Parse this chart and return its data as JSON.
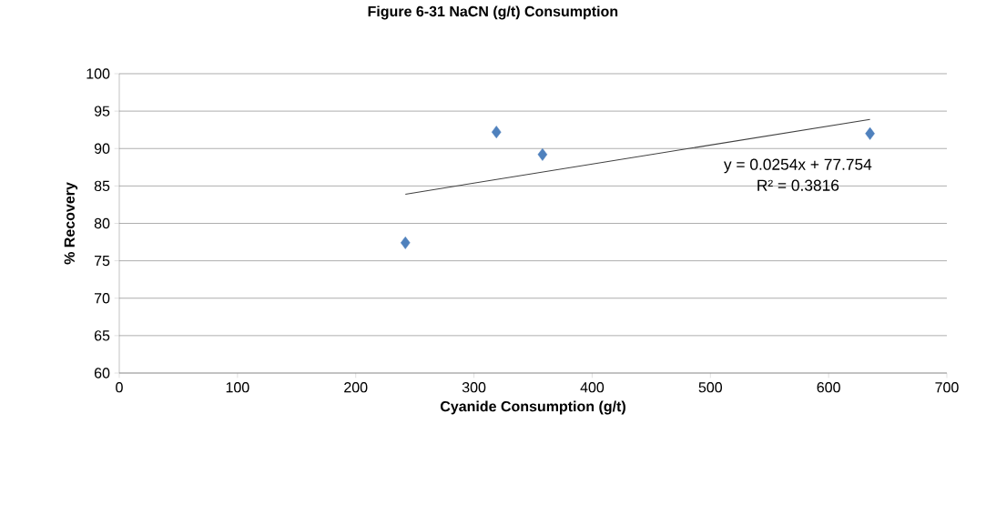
{
  "chart_data": {
    "type": "scatter",
    "title": "Figure 6-31 NaCN (g/t) Consumption",
    "xlabel": "Cyanide Consumption (g/t)",
    "ylabel": "% Recovery",
    "xlim": [
      0,
      700
    ],
    "xticks": [
      0,
      100,
      200,
      300,
      400,
      500,
      600,
      700
    ],
    "ylim": [
      60,
      100
    ],
    "yticks": [
      60,
      65,
      70,
      75,
      80,
      85,
      90,
      95,
      100
    ],
    "grid": "y",
    "marker": "diamond",
    "series": [
      {
        "color": "#4f81bd",
        "x": [
          242,
          319,
          358,
          635
        ],
        "values": [
          77.4,
          92.2,
          89.2,
          92.0
        ]
      },
      {
        "type": "line",
        "color": "#404040",
        "marker": "none",
        "x": [
          242,
          635
        ],
        "values": [
          83.9,
          93.9
        ]
      }
    ],
    "annotations": [
      "y = 0.0254x + 77.754",
      "R² = 0.3816"
    ]
  }
}
